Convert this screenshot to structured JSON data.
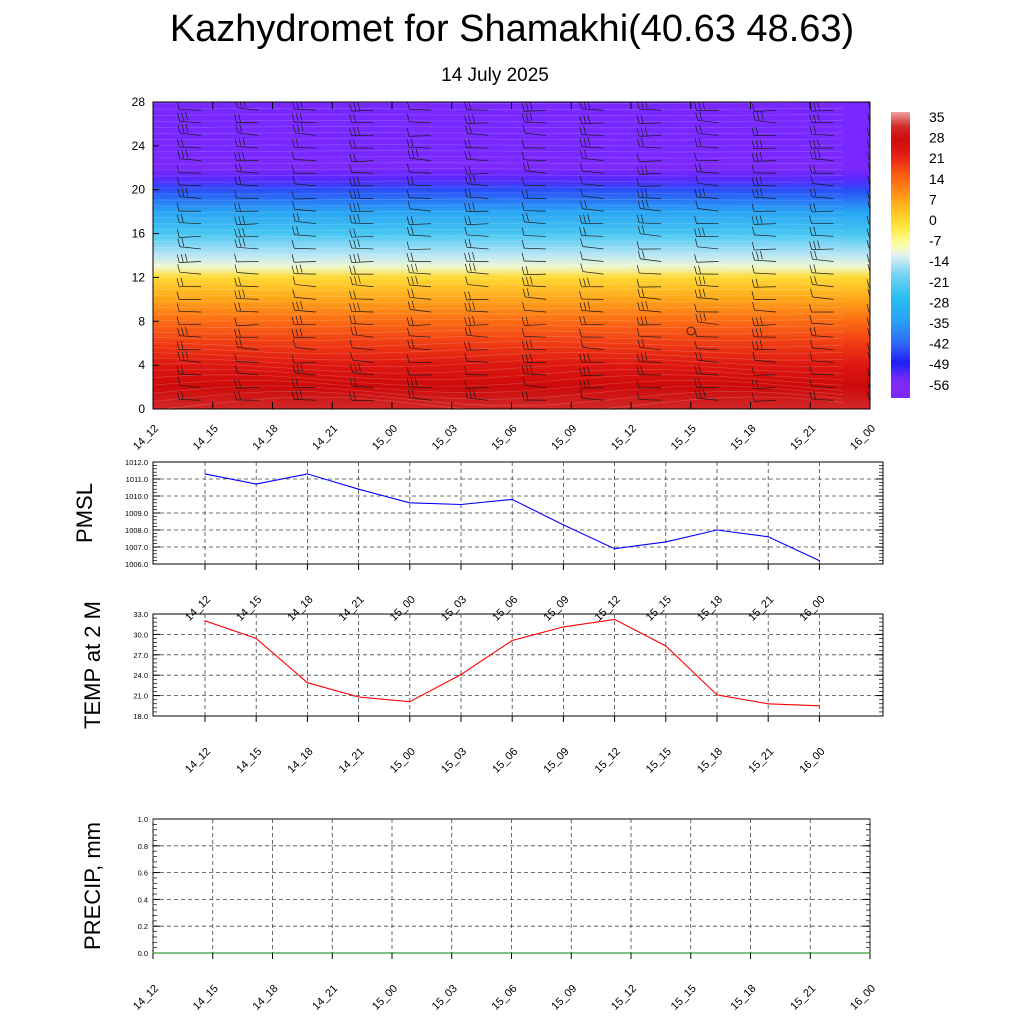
{
  "header": {
    "title": "Kazhydromet for Shamakhi(40.63 48.63)",
    "subtitle": "14 July 2025"
  },
  "palette": {
    "pmsl_line": "#0000ff",
    "temp_line": "#ff0000",
    "precip_line": "#008000",
    "grid": "#555555"
  },
  "chart_data": [
    {
      "type": "heatmap",
      "title": "",
      "xlabel": "",
      "ylabel": "",
      "x_tick_labels": [
        "14_12",
        "14_15",
        "14_18",
        "14_21",
        "15_00",
        "15_03",
        "15_06",
        "15_09",
        "15_12",
        "15_15",
        "15_18",
        "15_21",
        "16_00"
      ],
      "y_tick_labels": [
        "0",
        "4",
        "8",
        "12",
        "16",
        "20",
        "24",
        "28"
      ],
      "ylim": [
        0,
        28
      ],
      "colorbar_labels": [
        "35",
        "28",
        "21",
        "14",
        "7",
        "0",
        "-7",
        "-14",
        "-21",
        "-28",
        "-35",
        "-42",
        "-49",
        "-56"
      ],
      "vertical_profile": {
        "levels": [
          0,
          2,
          4,
          6,
          8,
          10,
          12,
          13,
          14,
          16,
          18,
          20,
          21,
          22,
          23,
          24,
          28
        ],
        "values": [
          30,
          26,
          22,
          17,
          12,
          5,
          -2,
          -12,
          -16,
          -25,
          -35,
          -46,
          -54,
          -60,
          -62,
          -62,
          -62
        ]
      },
      "wind_barbs": true
    },
    {
      "type": "line",
      "ylabel": "PMSL",
      "ylim": [
        1006.0,
        1012.0
      ],
      "y_tick_labels": [
        "1006.0",
        "1007.0",
        "1008.0",
        "1009.0",
        "1010.0",
        "1011.0",
        "1012.0"
      ],
      "categories": [
        "14_12",
        "14_15",
        "14_18",
        "14_21",
        "15_00",
        "15_03",
        "15_06",
        "15_09",
        "15_12",
        "15_15",
        "15_18",
        "15_21",
        "16_00"
      ],
      "values": [
        1011.3,
        1010.7,
        1011.3,
        1010.4,
        1009.6,
        1009.5,
        1009.8,
        1008.3,
        1006.9,
        1007.3,
        1008.0,
        1007.6,
        1006.2
      ],
      "grid": true
    },
    {
      "type": "line",
      "ylabel": "TEMP at 2 M",
      "ylim": [
        18.0,
        33.0
      ],
      "y_tick_labels": [
        "18.0",
        "21.0",
        "24.0",
        "27.0",
        "30.0",
        "33.0"
      ],
      "categories": [
        "14_12",
        "14_15",
        "14_18",
        "14_21",
        "15_00",
        "15_03",
        "15_06",
        "15_09",
        "15_12",
        "15_15",
        "15_18",
        "15_21",
        "16_00"
      ],
      "values": [
        32.0,
        29.4,
        22.9,
        20.8,
        20.1,
        24.1,
        29.1,
        31.1,
        32.2,
        28.3,
        21.1,
        19.8,
        19.5
      ],
      "grid": true
    },
    {
      "type": "line",
      "ylabel": "PRECIP, mm",
      "ylim": [
        0.0,
        1.0
      ],
      "y_tick_labels": [
        "0.0",
        "0.2",
        "0.4",
        "0.6",
        "0.8",
        "1.0"
      ],
      "categories": [
        "14_12",
        "14_15",
        "14_18",
        "14_21",
        "15_00",
        "15_03",
        "15_06",
        "15_09",
        "15_12",
        "15_15",
        "15_18",
        "15_21",
        "16_00"
      ],
      "values": [
        0,
        0,
        0,
        0,
        0,
        0,
        0,
        0,
        0,
        0,
        0,
        0,
        0
      ],
      "grid": true
    }
  ]
}
